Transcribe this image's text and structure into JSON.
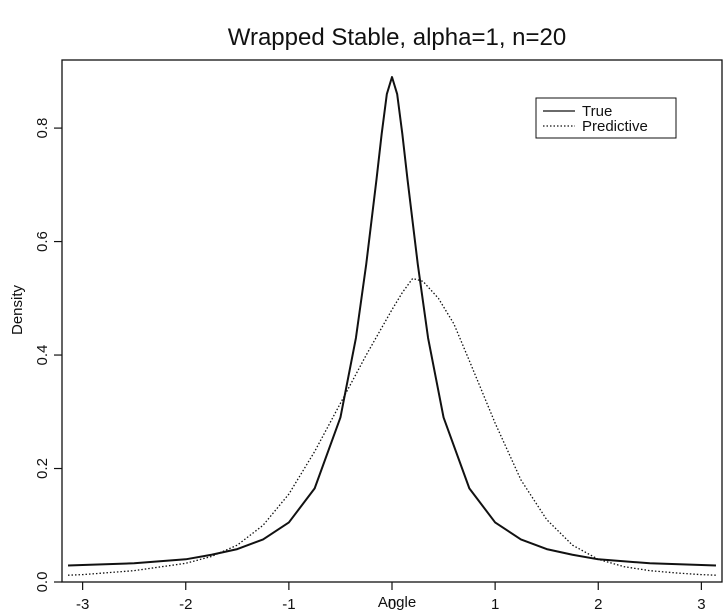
{
  "chart_data": {
    "type": "line",
    "title": "Wrapped Stable, alpha=1, n=20",
    "xlabel": "Angle",
    "ylabel": "Density",
    "xlim": [
      -3.2,
      3.2
    ],
    "ylim": [
      0,
      0.92
    ],
    "x_ticks": [
      -3,
      -2,
      -1,
      0,
      1,
      2,
      3
    ],
    "x_tick_labels": [
      "-3",
      "-2",
      "-1",
      "0",
      "1",
      "2",
      "3"
    ],
    "y_ticks": [
      0.0,
      0.2,
      0.4,
      0.6,
      0.8
    ],
    "y_tick_labels": [
      "0.0",
      "0.2",
      "0.4",
      "0.6",
      "0.8"
    ],
    "grid": false,
    "legend": "top-right",
    "series": [
      {
        "name": "True",
        "style": "solid",
        "color": "#111111",
        "x": [
          -3.1416,
          -3.0,
          -2.5,
          -2.0,
          -1.75,
          -1.5,
          -1.25,
          -1.0,
          -0.75,
          -0.5,
          -0.35,
          -0.25,
          -0.15,
          -0.1,
          -0.05,
          0.0,
          0.05,
          0.1,
          0.15,
          0.25,
          0.35,
          0.5,
          0.75,
          1.0,
          1.25,
          1.5,
          1.75,
          2.0,
          2.5,
          3.0,
          3.1416
        ],
        "values": [
          0.029,
          0.03,
          0.033,
          0.04,
          0.048,
          0.058,
          0.075,
          0.105,
          0.165,
          0.29,
          0.43,
          0.56,
          0.71,
          0.79,
          0.86,
          0.89,
          0.86,
          0.79,
          0.71,
          0.56,
          0.43,
          0.29,
          0.165,
          0.105,
          0.075,
          0.058,
          0.048,
          0.04,
          0.033,
          0.03,
          0.029
        ]
      },
      {
        "name": "Predictive",
        "style": "dotted",
        "color": "#111111",
        "x": [
          -3.1416,
          -3.0,
          -2.5,
          -2.0,
          -1.75,
          -1.5,
          -1.25,
          -1.0,
          -0.75,
          -0.5,
          -0.25,
          0.0,
          0.1,
          0.2,
          0.3,
          0.45,
          0.6,
          0.75,
          1.0,
          1.25,
          1.5,
          1.75,
          2.0,
          2.25,
          2.5,
          2.75,
          3.0,
          3.1416
        ],
        "values": [
          0.012,
          0.013,
          0.02,
          0.033,
          0.045,
          0.065,
          0.1,
          0.155,
          0.23,
          0.315,
          0.4,
          0.48,
          0.51,
          0.535,
          0.53,
          0.5,
          0.455,
          0.39,
          0.28,
          0.18,
          0.11,
          0.065,
          0.04,
          0.027,
          0.02,
          0.016,
          0.013,
          0.012
        ]
      }
    ]
  }
}
